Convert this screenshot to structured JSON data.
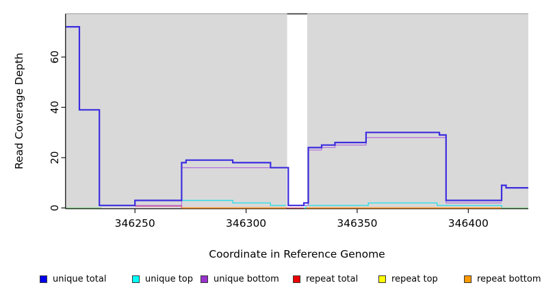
{
  "figure": {
    "xlabel": "Coordinate in Reference Genome",
    "ylabel": "Read Coverage Depth"
  },
  "colors": {
    "plot_bg": "#d9d9d9",
    "gap_mask": "#ffffff",
    "gap_cap": "#6e6e6e",
    "plot_top_border": "#a8a8a8",
    "axis": "#000000",
    "tick_label": "#000000"
  },
  "chart_data": {
    "type": "line",
    "subtype": "step-coverage-plot",
    "title": "",
    "xlabel": "Coordinate in Reference Genome",
    "ylabel": "Read Coverage Depth",
    "xlim": [
      346219,
      346427
    ],
    "ylim": [
      0,
      77
    ],
    "xticks": [
      346250,
      346300,
      346350,
      346400
    ],
    "yticks": [
      0,
      20,
      40,
      60
    ],
    "grid": false,
    "legend_position": "bottom",
    "gap_mask": {
      "from": 346318.5,
      "to": 346327.5
    },
    "series": [
      {
        "name": "repeat top",
        "color": "#f2e635",
        "lw": 1.2,
        "segments": [
          [
            [
              346272,
              0
            ],
            [
              346414,
              0
            ]
          ]
        ]
      },
      {
        "name": "repeat total",
        "color": "#dd4477",
        "lw": 1.2,
        "segments": [
          [
            [
              346250,
              0.7
            ],
            [
              346271,
              0
            ],
            [
              346414,
              0
            ]
          ]
        ]
      },
      {
        "name": "unique top",
        "color": "#30dde6",
        "lw": 1.4,
        "segments": [
          [
            [
              346250,
              3
            ],
            [
              346294,
              2
            ],
            [
              346311,
              1
            ],
            [
              346318,
              1
            ]
          ],
          [
            [
              346326,
              0
            ],
            [
              346327,
              1
            ],
            [
              346355,
              2
            ],
            [
              346386,
              1
            ],
            [
              346415,
              0
            ]
          ]
        ]
      },
      {
        "name": "repeat bottom",
        "color": "#ff9922",
        "lw": 1.6,
        "segments": [
          [
            [
              346271,
              0
            ],
            [
              346318,
              0
            ]
          ],
          [
            [
              346327,
              0
            ],
            [
              346415,
              0
            ]
          ]
        ]
      },
      {
        "name": "unlabeled green baseline",
        "color": "#7bc87f",
        "lw": 1.3,
        "segments": [
          [
            [
              346219,
              0
            ],
            [
              346235,
              0
            ]
          ],
          [
            [
              346415,
              0
            ],
            [
              346427,
              0
            ]
          ]
        ]
      },
      {
        "name": "unique bottom",
        "color": "#b678dd",
        "lw": 1.3,
        "segments": [
          [
            [
              346250,
              1
            ],
            [
              346271,
              16
            ],
            [
              346319,
              1
            ],
            [
              346328,
              23
            ],
            [
              346334,
              24
            ],
            [
              346340,
              25
            ],
            [
              346354,
              28
            ],
            [
              346390,
              2
            ],
            [
              346415,
              2
            ]
          ]
        ]
      },
      {
        "name": "unique total",
        "color": "#3c2cdf",
        "lw": 2.2,
        "segments": [
          [
            [
              346219,
              72
            ],
            [
              346225,
              39
            ],
            [
              346234,
              1
            ],
            [
              346250,
              3
            ],
            [
              346271,
              18
            ],
            [
              346273,
              19
            ],
            [
              346294,
              18
            ],
            [
              346311,
              16
            ],
            [
              346319,
              1
            ],
            [
              346326,
              2
            ],
            [
              346328,
              24
            ],
            [
              346334,
              25
            ],
            [
              346340,
              26
            ],
            [
              346354,
              30
            ],
            [
              346387,
              29
            ],
            [
              346390,
              3
            ],
            [
              346415,
              9
            ],
            [
              346417,
              8
            ],
            [
              346427,
              8
            ]
          ]
        ]
      }
    ],
    "legend": [
      {
        "label": "unique total",
        "color": "#0000ee"
      },
      {
        "label": "unique top",
        "color": "#00ffff"
      },
      {
        "label": "unique bottom",
        "color": "#9933cc"
      },
      {
        "label": "repeat total",
        "color": "#ee0000"
      },
      {
        "label": "repeat top",
        "color": "#ffff00"
      },
      {
        "label": "repeat bottom",
        "color": "#ff9900"
      }
    ]
  }
}
